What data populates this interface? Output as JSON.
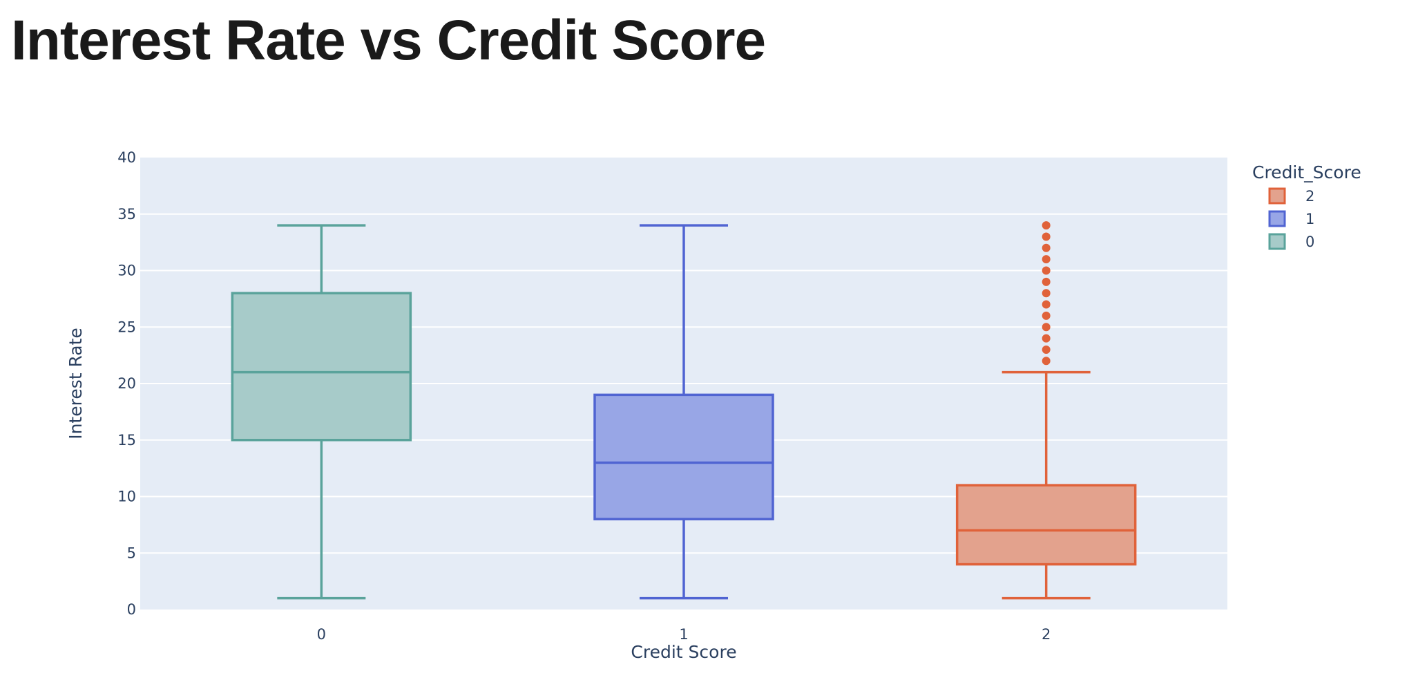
{
  "page": {
    "title": "Interest Rate vs Credit Score"
  },
  "chart_data": {
    "type": "box",
    "xlabel": "Credit Score",
    "ylabel": "Interest Rate",
    "ylim": [
      0,
      40
    ],
    "yticks": [
      0,
      5,
      10,
      15,
      20,
      25,
      30,
      35,
      40
    ],
    "categories": [
      "0",
      "1",
      "2"
    ],
    "grid": true,
    "legend": {
      "title": "Credit_Score",
      "placement": "top-right",
      "order": [
        "2",
        "1",
        "0"
      ]
    },
    "plot_bg": "#e5ecf6",
    "series": [
      {
        "name": "0",
        "category": "0",
        "color": "#5aa39b",
        "fill": "#a7cbc9",
        "min": 1,
        "q1": 15,
        "median": 21,
        "q3": 28,
        "max": 34,
        "outliers": []
      },
      {
        "name": "1",
        "category": "1",
        "color": "#5064d2",
        "fill": "#98a6e6",
        "min": 1,
        "q1": 8,
        "median": 13,
        "q3": 19,
        "max": 34,
        "outliers": []
      },
      {
        "name": "2",
        "category": "2",
        "color": "#e0623a",
        "fill": "#e3a28d",
        "min": 1,
        "q1": 4,
        "median": 7,
        "q3": 11,
        "max": 21,
        "outliers": [
          22,
          23,
          24,
          25,
          26,
          27,
          28,
          29,
          30,
          31,
          32,
          33,
          34
        ]
      }
    ]
  }
}
